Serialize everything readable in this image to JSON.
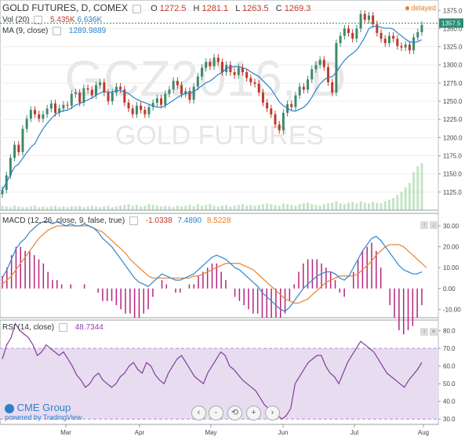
{
  "chart_data": {
    "type": "candlestick",
    "title": "GOLD FUTURES, D, COMEX",
    "symbol": "GCZ2016, D",
    "watermark_line1": "GCZ2016, D",
    "watermark_line2": "GOLD FUTURES",
    "delayed_label": "delayed",
    "ohlc_header": {
      "o_label": "O",
      "o": "1272.5",
      "h_label": "H",
      "h": "1281.1",
      "l_label": "L",
      "l": "1263.5",
      "c_label": "C",
      "c": "1269.3"
    },
    "last_price_label": "1357.5",
    "xaxis_labels": [
      "Mar",
      "Apr",
      "May",
      "Jun",
      "Jul",
      "Aug"
    ],
    "price_axis": {
      "min": 1100,
      "max": 1385,
      "ticks": [
        1125,
        1150,
        1175,
        1200,
        1225,
        1250,
        1275,
        1300,
        1325,
        1350,
        1375
      ]
    },
    "close": [
      1128,
      1148,
      1172,
      1190,
      1180,
      1212,
      1226,
      1238,
      1232,
      1226,
      1232,
      1240,
      1247,
      1234,
      1240,
      1245,
      1244,
      1260,
      1262,
      1248,
      1268,
      1266,
      1258,
      1272,
      1276,
      1262,
      1250,
      1262,
      1270,
      1266,
      1248,
      1240,
      1232,
      1244,
      1238,
      1232,
      1242,
      1248,
      1254,
      1245,
      1260,
      1266,
      1278,
      1272,
      1260,
      1264,
      1252,
      1270,
      1284,
      1296,
      1304,
      1298,
      1310,
      1304,
      1290,
      1300,
      1290,
      1286,
      1296,
      1290,
      1282,
      1276,
      1274,
      1262,
      1248,
      1240,
      1232,
      1218,
      1210,
      1234,
      1246,
      1242,
      1258,
      1270,
      1266,
      1280,
      1294,
      1300,
      1307,
      1297,
      1276,
      1262,
      1330,
      1340,
      1350,
      1344,
      1336,
      1350,
      1370,
      1362,
      1368,
      1356,
      1344,
      1336,
      1330,
      1340,
      1336,
      1326,
      1324,
      1328,
      1320,
      1338,
      1345,
      1355
    ],
    "volume": {
      "label": "Vol (20)",
      "v1": "5.435K",
      "v2": "6.636K",
      "values": [
        6,
        5,
        4,
        6,
        5,
        4,
        4,
        5,
        6,
        4,
        5,
        4,
        5,
        6,
        4,
        5,
        4,
        5,
        5,
        6,
        4,
        5,
        6,
        5,
        4,
        5,
        6,
        4,
        5,
        6,
        7,
        8,
        6,
        7,
        5,
        6,
        8,
        7,
        6,
        5,
        6,
        5,
        4,
        6,
        5,
        6,
        7,
        5,
        8,
        6,
        7,
        8,
        6,
        5,
        6,
        7,
        5,
        6,
        7,
        8,
        6,
        7,
        6,
        7,
        8,
        9,
        8,
        7,
        6,
        9,
        8,
        7,
        6,
        8,
        9,
        10,
        8,
        7,
        6,
        8,
        9,
        10,
        12,
        9,
        8,
        10,
        11,
        9,
        12,
        10,
        9,
        11,
        10,
        9,
        12,
        14,
        16,
        20,
        24,
        30,
        36,
        50,
        58,
        62
      ]
    },
    "ma": {
      "label": "MA (9, close)",
      "value": "1289.9889"
    },
    "macd": {
      "label": "MACD (12, 26, close, 9, false, true)",
      "hist_value": "-1.0338",
      "macd_value": "7.4890",
      "signal_value": "8.5228",
      "axis_ticks": [
        -10,
        0,
        10,
        20,
        30
      ],
      "macd_line": [
        5,
        9,
        14,
        19,
        22,
        24,
        27,
        29,
        31,
        32,
        32,
        31,
        32,
        31,
        30,
        31,
        30,
        30,
        31,
        30,
        29,
        27,
        24,
        22,
        20,
        17,
        14,
        11,
        8,
        5,
        3,
        2,
        1,
        3,
        5,
        7,
        6,
        5,
        4,
        4,
        5,
        6,
        7,
        9,
        11,
        13,
        15,
        16,
        15,
        14,
        12,
        10,
        9,
        7,
        5,
        3,
        1,
        -2,
        -4,
        -6,
        -8,
        -10,
        -11,
        -9,
        -6,
        -3,
        0,
        2,
        4,
        6,
        7,
        8,
        8,
        7,
        5,
        4,
        6,
        10,
        14,
        18,
        21,
        24,
        25,
        23,
        20,
        17,
        14,
        11,
        9,
        8,
        7,
        7,
        8
      ],
      "signal_line": [
        2,
        4,
        6,
        9,
        12,
        15,
        18,
        21,
        24,
        26,
        28,
        29,
        30,
        30,
        30,
        30,
        30,
        30,
        30,
        30,
        29,
        28,
        27,
        25,
        23,
        21,
        19,
        17,
        14,
        12,
        10,
        8,
        6,
        5,
        5,
        5,
        5,
        5,
        5,
        5,
        5,
        5,
        6,
        6,
        7,
        8,
        9,
        10,
        11,
        12,
        12,
        12,
        12,
        11,
        10,
        9,
        7,
        5,
        3,
        1,
        -1,
        -3,
        -5,
        -6,
        -7,
        -7,
        -6,
        -5,
        -3,
        -1,
        1,
        3,
        4,
        5,
        6,
        6,
        6,
        6,
        7,
        9,
        11,
        13,
        16,
        18,
        20,
        21,
        21,
        21,
        20,
        18,
        16,
        14,
        12,
        10
      ]
    },
    "rsi": {
      "label": "RSI (14, close)",
      "value": "48.7344",
      "axis_ticks": [
        30,
        40,
        50,
        60,
        70,
        80
      ],
      "band": [
        30,
        70
      ],
      "values": [
        64,
        72,
        76,
        84,
        80,
        78,
        76,
        72,
        66,
        68,
        72,
        70,
        68,
        66,
        68,
        64,
        60,
        55,
        52,
        48,
        50,
        54,
        56,
        52,
        50,
        48,
        50,
        54,
        56,
        60,
        62,
        58,
        56,
        62,
        60,
        55,
        52,
        50,
        56,
        60,
        64,
        66,
        62,
        58,
        54,
        52,
        50,
        56,
        60,
        64,
        68,
        66,
        60,
        58,
        55,
        52,
        50,
        48,
        46,
        42,
        38,
        36,
        34,
        32,
        30,
        32,
        36,
        50,
        54,
        58,
        62,
        64,
        66,
        66,
        60,
        56,
        54,
        50,
        56,
        62,
        66,
        70,
        74,
        72,
        70,
        68,
        64,
        60,
        56,
        54,
        52,
        50,
        48,
        52,
        55,
        58,
        62
      ]
    },
    "branding": {
      "name": "CME Group",
      "sub": "powered by TradingView"
    },
    "colors": {
      "up": "#3d8a6a",
      "down": "#c0392b",
      "ma": "#2c82c9",
      "macd": "#3a8fd4",
      "signal": "#e98b3a",
      "hist": "#b6257d",
      "rsi": "#7f3f98",
      "rsi_band": "#e8dcf1",
      "vol": "#7fc07f",
      "price_tag": "#2b8a72"
    }
  },
  "controls": {
    "zoom_out": "-",
    "reset": "⟲",
    "zoom_in": "+",
    "scroll_left": "‹",
    "scroll_right": "›"
  },
  "pane_controls": {
    "up": "↑",
    "down": "↓",
    "close": "×"
  }
}
